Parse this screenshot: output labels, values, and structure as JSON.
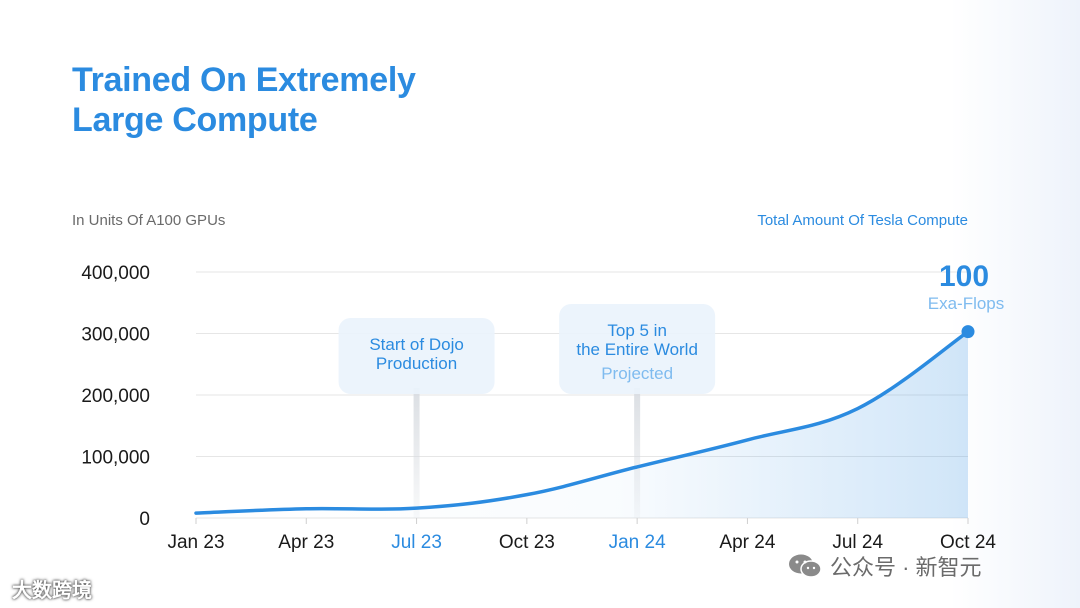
{
  "header": {
    "title_line1": "Trained On Extremely",
    "title_line2": "Large Compute"
  },
  "units_label": "In Units Of A100 GPUs",
  "series_label": "Total Amount Of Tesla Compute",
  "colors": {
    "accent": "#2b8be0",
    "accent_light": "#7fbbef",
    "grid": "#e6e6e6",
    "axis_text": "#1a1a1a",
    "callout_bg": "#eaf3fc"
  },
  "chart_data": {
    "type": "area",
    "x_ticks": [
      "Jan 23",
      "Apr 23",
      "Jul 23",
      "Oct 23",
      "Jan 24",
      "Apr 24",
      "Jul 24",
      "Oct 24"
    ],
    "highlighted_ticks": [
      "Jul 23",
      "Jan 24"
    ],
    "y_ticks": [
      "400,000",
      "300,000",
      "200,000",
      "100,000",
      "0"
    ],
    "ylim": [
      0,
      400000
    ],
    "grid": true,
    "series": [
      {
        "x": [
          "Jan 23",
          "Apr 23",
          "Jul 23",
          "Oct 23",
          "Jan 24",
          "Apr 24",
          "Jul 24",
          "Oct 24"
        ],
        "values": [
          8000,
          15000,
          16000,
          38000,
          83000,
          127000,
          178000,
          303000
        ]
      }
    ],
    "annotations": [
      {
        "text": "Start of Dojo Production",
        "x": "Jul 23"
      },
      {
        "text": "Top 5 in the Entire World",
        "subtext": "Projected",
        "x": "Jan 24"
      }
    ],
    "end_label": {
      "value": "100",
      "unit": "Exa-Flops"
    }
  },
  "watermarks": {
    "left": "大数跨境",
    "right": "公众号 · 新智元"
  }
}
